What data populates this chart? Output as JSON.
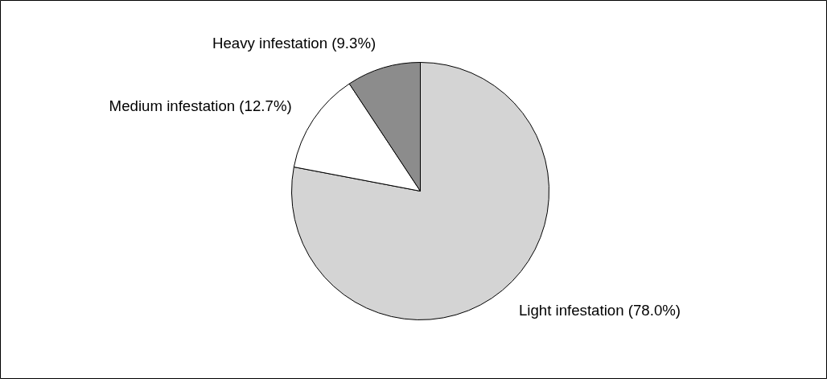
{
  "chart_data": {
    "type": "pie",
    "categories": [
      "Light infestation (78.0%)",
      "Medium infestation (12.7%)",
      "Heavy infestation (9.3%)"
    ],
    "values": [
      78.0,
      12.7,
      9.3
    ],
    "colors": [
      "#d4d4d4",
      "#ffffff",
      "#8c8c8c"
    ],
    "legend": false
  }
}
